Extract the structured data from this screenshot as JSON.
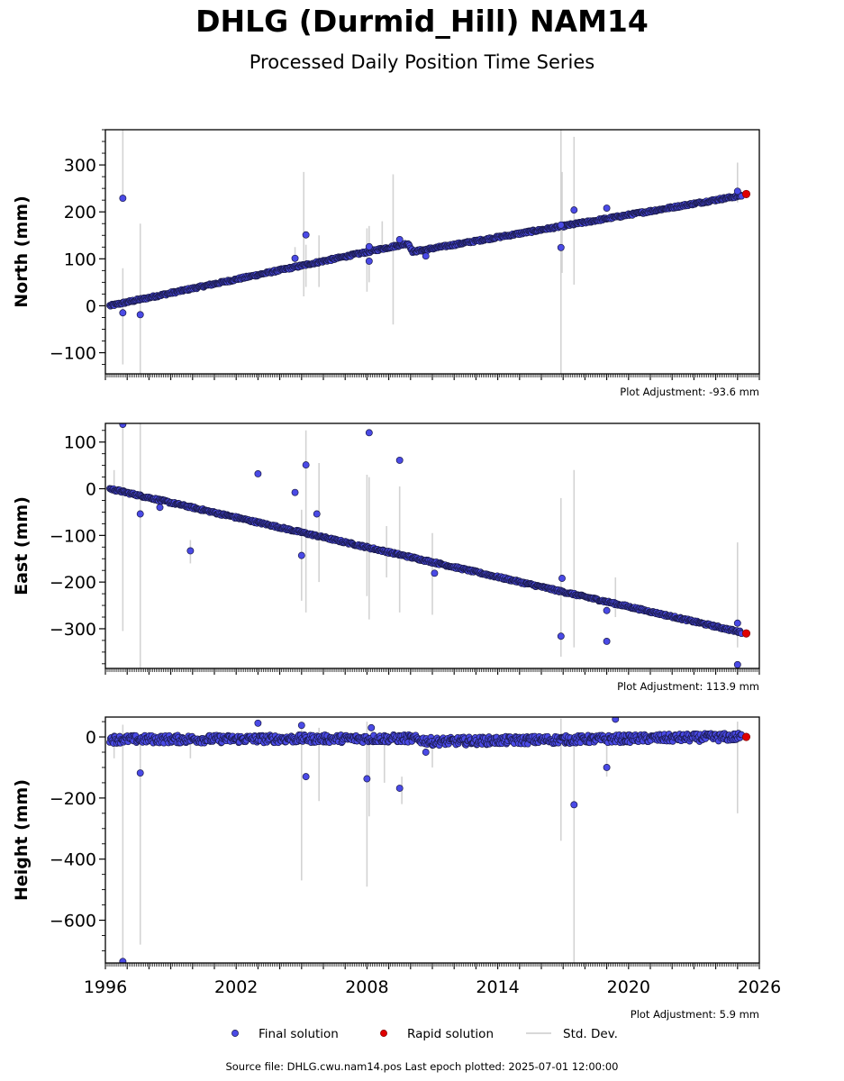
{
  "figure": {
    "title": "DHLG (Durmid_Hill) NAM14",
    "subtitle": "Processed Daily Position Time Series",
    "source_line": "Source file: DHLG.cwu.nam14.pos  Last epoch plotted: 2025-07-01 12:00:00",
    "colors": {
      "final": "#4a4ae6",
      "final_edge": "#1a1a4a",
      "rapid": "#e00000",
      "stddev": "#d3d3d3"
    }
  },
  "legend": {
    "placement": "bottom-center",
    "items": [
      {
        "label": "Final solution",
        "marker": "blue-dot"
      },
      {
        "label": "Rapid solution",
        "marker": "red-dot"
      },
      {
        "label": "Std. Dev.",
        "marker": "gray-line"
      }
    ]
  },
  "chart_data": [
    {
      "type": "scatter",
      "ylabel": "North (mm)",
      "xlim": [
        1996,
        2026
      ],
      "ylim": [
        -145,
        375
      ],
      "yticks": [
        -100,
        0,
        100,
        200,
        300
      ],
      "adjustment": "Plot Adjustment: -93.6 mm",
      "grid": false,
      "series": [
        {
          "name": "Final solution",
          "trend": [
            [
              1996.2,
              0
            ],
            [
              2009.9,
              133
            ],
            [
              2010.1,
              115
            ],
            [
              2025.2,
              235
            ]
          ]
        },
        {
          "name": "Rapid solution",
          "points": [
            [
              2025.4,
              238
            ]
          ]
        }
      ],
      "outliers": [
        [
          1996.8,
          229
        ],
        [
          1996.8,
          -15
        ],
        [
          1997.6,
          -19
        ],
        [
          2004.7,
          101
        ],
        [
          2005.2,
          151
        ],
        [
          2008.1,
          95
        ],
        [
          2008.1,
          126
        ],
        [
          2009.5,
          141
        ],
        [
          2010.7,
          106
        ],
        [
          2016.9,
          124
        ],
        [
          2016.9,
          172
        ],
        [
          2017.5,
          204
        ],
        [
          2019.0,
          208
        ],
        [
          2025.0,
          244
        ]
      ],
      "std_dev": [
        [
          1996.8,
          225,
          375
        ],
        [
          1996.8,
          -125,
          80
        ],
        [
          1997.6,
          -145,
          175
        ],
        [
          2004.7,
          80,
          125
        ],
        [
          2005.1,
          20,
          285
        ],
        [
          2005.2,
          40,
          130
        ],
        [
          2005.8,
          40,
          150
        ],
        [
          2008.0,
          30,
          165
        ],
        [
          2008.1,
          50,
          170
        ],
        [
          2008.7,
          120,
          180
        ],
        [
          2009.2,
          -40,
          280
        ],
        [
          2016.9,
          -145,
          375
        ],
        [
          2016.95,
          70,
          285
        ],
        [
          2017.5,
          45,
          360
        ],
        [
          2025.0,
          220,
          305
        ]
      ]
    },
    {
      "type": "scatter",
      "ylabel": "East (mm)",
      "xlim": [
        1996,
        2026
      ],
      "ylim": [
        -385,
        140
      ],
      "yticks": [
        -300,
        -200,
        -100,
        0,
        100
      ],
      "adjustment": "Plot Adjustment: 113.9 mm",
      "grid": false,
      "series": [
        {
          "name": "Final solution",
          "trend": [
            [
              1996.2,
              0
            ],
            [
              2025.2,
              -308
            ]
          ]
        },
        {
          "name": "Rapid solution",
          "points": [
            [
              2025.4,
              -310
            ]
          ]
        }
      ],
      "outliers": [
        [
          1996.8,
          138
        ],
        [
          1997.6,
          -54
        ],
        [
          1998.5,
          -40
        ],
        [
          1999.9,
          -133
        ],
        [
          2003.0,
          32
        ],
        [
          2004.7,
          -8
        ],
        [
          2005.0,
          -143
        ],
        [
          2005.2,
          51
        ],
        [
          2005.7,
          -54
        ],
        [
          2008.1,
          120
        ],
        [
          2009.5,
          61
        ],
        [
          2011.1,
          -181
        ],
        [
          2016.9,
          -316
        ],
        [
          2016.95,
          -192
        ],
        [
          2019.0,
          -261
        ],
        [
          2019.0,
          -327
        ],
        [
          2025.0,
          -288
        ],
        [
          2025.0,
          -377
        ]
      ],
      "std_dev": [
        [
          1996.4,
          -10,
          40
        ],
        [
          1996.8,
          -305,
          140
        ],
        [
          1997.6,
          -385,
          140
        ],
        [
          1999.9,
          -160,
          -110
        ],
        [
          2005.0,
          -240,
          -45
        ],
        [
          2005.2,
          -265,
          125
        ],
        [
          2005.8,
          -200,
          55
        ],
        [
          2008.0,
          -230,
          30
        ],
        [
          2008.1,
          -280,
          25
        ],
        [
          2008.9,
          -190,
          -80
        ],
        [
          2009.5,
          -265,
          5
        ],
        [
          2011.0,
          -270,
          -95
        ],
        [
          2016.9,
          -360,
          -20
        ],
        [
          2017.5,
          -340,
          40
        ],
        [
          2019.4,
          -275,
          -190
        ],
        [
          2025.0,
          -340,
          -115
        ]
      ]
    },
    {
      "type": "scatter",
      "ylabel": "Height (mm)",
      "xlim": [
        1996,
        2026
      ],
      "ylim": [
        -740,
        65
      ],
      "yticks": [
        -600,
        -400,
        -200,
        0
      ],
      "xticks": [
        1996,
        2002,
        2008,
        2014,
        2020,
        2026
      ],
      "adjustment": "Plot Adjustment: 5.9 mm",
      "grid": false,
      "series": [
        {
          "name": "Final solution",
          "band": [
            [
              1996.2,
              -8
            ],
            [
              2010.0,
              -5
            ],
            [
              2011.0,
              -15
            ],
            [
              2025.2,
              0
            ]
          ]
        },
        {
          "name": "Rapid solution",
          "points": [
            [
              2025.4,
              0
            ]
          ]
        }
      ],
      "outliers": [
        [
          1996.8,
          -735
        ],
        [
          1997.6,
          -118
        ],
        [
          2003.0,
          45
        ],
        [
          2005.0,
          38
        ],
        [
          2005.2,
          -130
        ],
        [
          2008.0,
          -137
        ],
        [
          2008.2,
          30
        ],
        [
          2009.5,
          -168
        ],
        [
          2010.7,
          -50
        ],
        [
          2017.5,
          -222
        ],
        [
          2019.0,
          -100
        ],
        [
          2019.4,
          58
        ]
      ],
      "std_dev": [
        [
          1996.4,
          -70,
          10
        ],
        [
          1996.8,
          -740,
          40
        ],
        [
          1997.6,
          -680,
          0
        ],
        [
          1999.9,
          -70,
          0
        ],
        [
          2005.0,
          -470,
          50
        ],
        [
          2005.8,
          -210,
          30
        ],
        [
          2008.0,
          -490,
          50
        ],
        [
          2008.1,
          -260,
          0
        ],
        [
          2008.8,
          -150,
          0
        ],
        [
          2009.6,
          -220,
          -130
        ],
        [
          2011.0,
          -100,
          0
        ],
        [
          2016.9,
          -340,
          60
        ],
        [
          2017.5,
          -740,
          0
        ],
        [
          2019.0,
          -130,
          0
        ],
        [
          2025.0,
          -250,
          50
        ],
        [
          2025.0,
          -120,
          0
        ]
      ]
    }
  ]
}
